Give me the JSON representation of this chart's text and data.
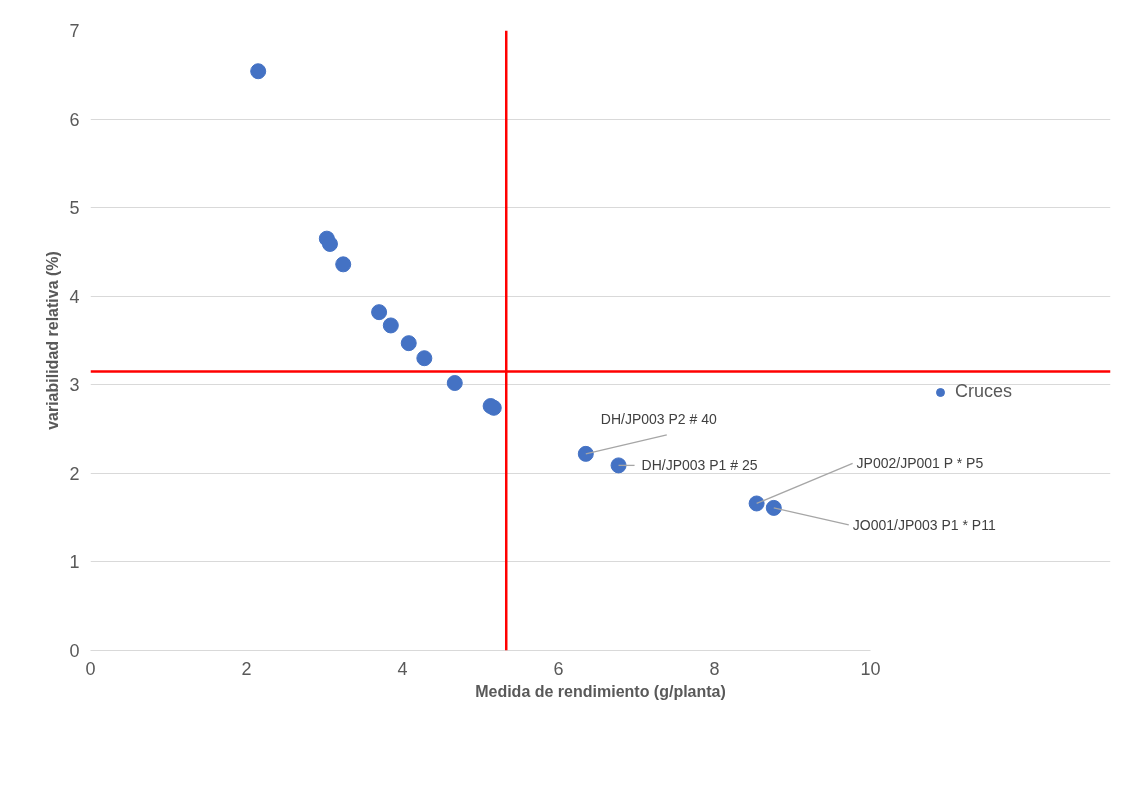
{
  "chart_data": {
    "type": "scatter",
    "xlabel": "Medida de rendimiento (g/planta)",
    "ylabel": "variabilidad relativa (%)",
    "x": [
      2.15,
      3.03,
      3.07,
      3.24,
      3.7,
      3.85,
      4.08,
      4.28,
      4.67,
      5.13,
      5.17,
      6.35,
      6.77,
      8.54,
      8.76
    ],
    "series": [
      {
        "name": "Cruces",
        "color": "#4472c4",
        "values": [
          6.54,
          4.65,
          4.59,
          4.36,
          3.82,
          3.67,
          3.47,
          3.3,
          3.02,
          2.76,
          2.74,
          2.22,
          2.09,
          1.66,
          1.61
        ]
      }
    ],
    "xlim": [
      0,
      10
    ],
    "ylim": [
      0,
      7
    ],
    "xticks": [
      0,
      2,
      4,
      6,
      8,
      10
    ],
    "yticks": [
      0,
      1,
      2,
      3,
      4,
      5,
      6,
      7
    ],
    "grid": "y",
    "legend": "right",
    "marker": "circle",
    "ref_lines": [
      {
        "axis": "x",
        "value": 5.33,
        "label": null,
        "color": "#ff0000"
      },
      {
        "axis": "y",
        "value": 3.15,
        "label": null,
        "color": "#ff0000"
      }
    ],
    "annotations": [
      {
        "text": "DH/JP003 P2 # 40",
        "x": 6.35,
        "y": 2.22
      },
      {
        "text": "DH/JP003 P1 # 25",
        "x": 6.77,
        "y": 2.09
      },
      {
        "text": "JP002/JP001 P * P5",
        "x": 8.54,
        "y": 1.66
      },
      {
        "text": "JO001/JP003 P1 * P11",
        "x": 8.76,
        "y": 1.61
      }
    ]
  }
}
